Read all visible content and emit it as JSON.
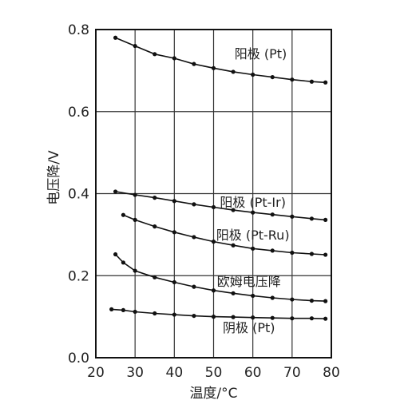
{
  "chart_data": {
    "type": "line",
    "xlabel": "温度/°C",
    "ylabel": "电压降/V",
    "xlim": [
      20,
      80
    ],
    "ylim": [
      0.0,
      0.8
    ],
    "xticks": [
      "20",
      "30",
      "40",
      "50",
      "60",
      "70",
      "80"
    ],
    "yticks": [
      "0.0",
      "0.2",
      "0.4",
      "0.6",
      "0.8"
    ],
    "grid": true,
    "series": [
      {
        "name": "阳极 (Pt)",
        "x": [
          25,
          30,
          35,
          40,
          45,
          50,
          55,
          60,
          65,
          70,
          75,
          78.5
        ],
        "y": [
          0.78,
          0.76,
          0.74,
          0.73,
          0.716,
          0.706,
          0.697,
          0.69,
          0.684,
          0.678,
          0.673,
          0.671
        ]
      },
      {
        "name": "阳极 (Pt-Ir)",
        "x": [
          25,
          30,
          35,
          40,
          45,
          50,
          55,
          60,
          65,
          70,
          75,
          78.5
        ],
        "y": [
          0.405,
          0.397,
          0.39,
          0.382,
          0.374,
          0.367,
          0.36,
          0.354,
          0.349,
          0.344,
          0.339,
          0.336
        ]
      },
      {
        "name": "阳极 (Pt-Ru)",
        "x": [
          27,
          30,
          35,
          40,
          45,
          50,
          55,
          60,
          65,
          70,
          75,
          78.5
        ],
        "y": [
          0.348,
          0.336,
          0.32,
          0.306,
          0.294,
          0.283,
          0.274,
          0.266,
          0.261,
          0.256,
          0.253,
          0.251
        ]
      },
      {
        "name": "欧姆电压降",
        "x": [
          25,
          27,
          30,
          35,
          40,
          45,
          50,
          55,
          60,
          65,
          70,
          75,
          78.5
        ],
        "y": [
          0.252,
          0.232,
          0.212,
          0.196,
          0.184,
          0.173,
          0.164,
          0.157,
          0.151,
          0.146,
          0.142,
          0.139,
          0.138
        ]
      },
      {
        "name": "阴极 (Pt)",
        "x": [
          24,
          27,
          30,
          35,
          40,
          45,
          50,
          55,
          60,
          65,
          70,
          75,
          78.5
        ],
        "y": [
          0.118,
          0.116,
          0.112,
          0.108,
          0.105,
          0.102,
          0.1,
          0.099,
          0.098,
          0.097,
          0.096,
          0.096,
          0.095
        ]
      }
    ]
  }
}
